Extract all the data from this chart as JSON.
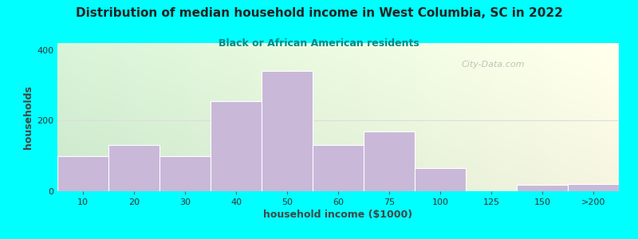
{
  "title": "Distribution of median household income in West Columbia, SC in 2022",
  "subtitle": "Black or African American residents",
  "xlabel": "household income ($1000)",
  "ylabel": "households",
  "fig_bg_color": "#00FFFF",
  "bar_color": "#c9b8d8",
  "bar_edgecolor": "#ffffff",
  "categories": [
    "10",
    "20",
    "30",
    "40",
    "50",
    "60",
    "75",
    "100",
    "125",
    "150",
    ">200"
  ],
  "values": [
    100,
    130,
    100,
    255,
    340,
    130,
    170,
    65,
    0,
    18,
    20
  ],
  "ylim": [
    0,
    420
  ],
  "yticks": [
    0,
    200,
    400
  ],
  "title_color": "#222222",
  "subtitle_color": "#008888",
  "watermark": "City-Data.com",
  "watermark_color": "#aaaaaa",
  "grid_color": "#dddddd",
  "gradient_left": "#cce8cc",
  "gradient_right": "#f5f5e0"
}
